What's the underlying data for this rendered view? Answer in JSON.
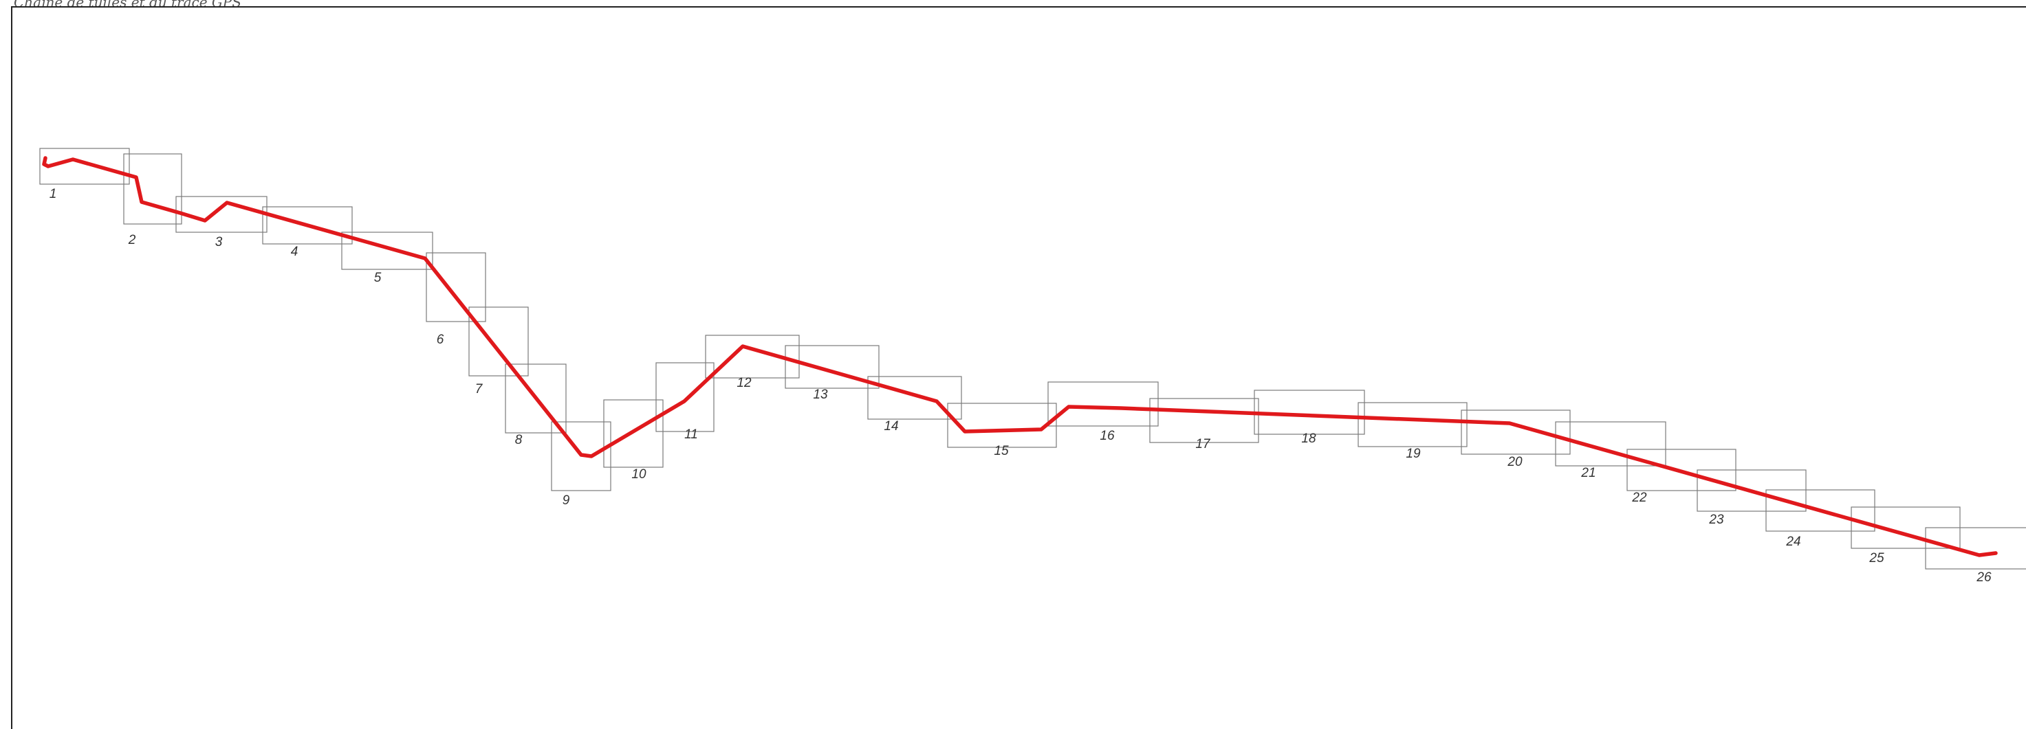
{
  "caption": "Chaîne de tuiles et du tracé GPS",
  "colors": {
    "route": "#e0191c",
    "tile_border": "#7a7a7a",
    "frame": "#222222",
    "label": "#333333"
  },
  "tiles": [
    {
      "label": "1"
    },
    {
      "label": "2"
    },
    {
      "label": "3"
    },
    {
      "label": "4"
    },
    {
      "label": "5"
    },
    {
      "label": "6"
    },
    {
      "label": "7"
    },
    {
      "label": "8"
    },
    {
      "label": "9"
    },
    {
      "label": "10"
    },
    {
      "label": "11"
    },
    {
      "label": "12"
    },
    {
      "label": "13"
    },
    {
      "label": "14"
    },
    {
      "label": "15"
    },
    {
      "label": "16"
    },
    {
      "label": "17"
    },
    {
      "label": "18"
    },
    {
      "label": "19"
    },
    {
      "label": "20"
    },
    {
      "label": "21"
    },
    {
      "label": "22"
    },
    {
      "label": "23"
    },
    {
      "label": "24"
    },
    {
      "label": "25"
    },
    {
      "label": "26"
    }
  ]
}
